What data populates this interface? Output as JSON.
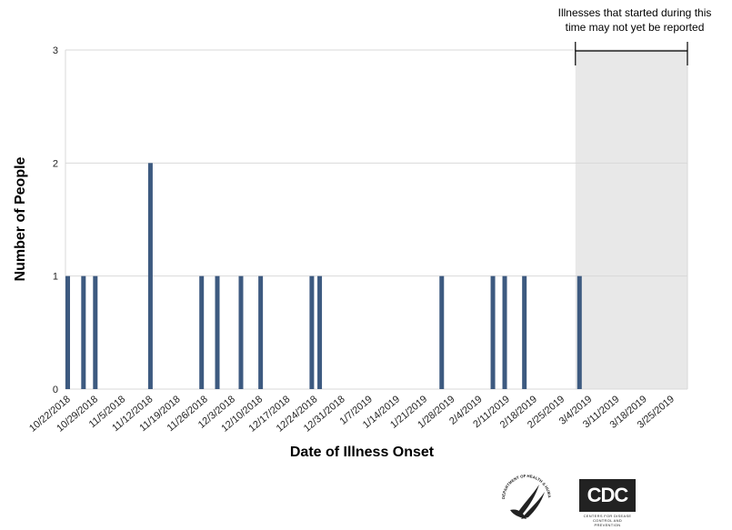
{
  "chart_data": {
    "type": "bar",
    "xlabel": "Date of Illness Onset",
    "ylabel": "Number of People",
    "ylim": [
      0,
      3
    ],
    "yticks": [
      0,
      1,
      2,
      3
    ],
    "grid": true,
    "x_ticks": [
      "10/22/2018",
      "10/29/2018",
      "11/5/2018",
      "11/12/2018",
      "11/19/2018",
      "11/26/2018",
      "12/3/2018",
      "12/10/2018",
      "12/17/2018",
      "12/24/2018",
      "12/31/2018",
      "1/7/2019",
      "1/14/2019",
      "1/21/2019",
      "1/28/2019",
      "2/4/2019",
      "2/11/2019",
      "2/18/2019",
      "2/25/2019",
      "3/4/2019",
      "3/11/2019",
      "3/18/2019",
      "3/25/2019"
    ],
    "x_start": "2018-10-22",
    "x_end": "2019-03-29",
    "bars": [
      {
        "date": "2018-10-22",
        "value": 1
      },
      {
        "date": "2018-10-26",
        "value": 1
      },
      {
        "date": "2018-10-29",
        "value": 1
      },
      {
        "date": "2018-11-12",
        "value": 2
      },
      {
        "date": "2018-11-25",
        "value": 1
      },
      {
        "date": "2018-11-29",
        "value": 1
      },
      {
        "date": "2018-12-05",
        "value": 1
      },
      {
        "date": "2018-12-10",
        "value": 1
      },
      {
        "date": "2018-12-23",
        "value": 1
      },
      {
        "date": "2018-12-25",
        "value": 1
      },
      {
        "date": "2019-01-25",
        "value": 1
      },
      {
        "date": "2019-02-07",
        "value": 1
      },
      {
        "date": "2019-02-10",
        "value": 1
      },
      {
        "date": "2019-02-15",
        "value": 1
      },
      {
        "date": "2019-03-01",
        "value": 1
      }
    ],
    "shaded_region": {
      "start": "2019-03-01",
      "end": "2019-03-29"
    },
    "annotation": [
      "Illnesses that started during this",
      "time may not yet be reported"
    ],
    "colors": {
      "bar": "#3d5a80",
      "shade": "#e8e8e8",
      "grid": "#d9d9d9"
    }
  },
  "logos": {
    "hhs_text": "DEPARTMENT OF HEALTH & HUMAN SERVICES USA",
    "cdc_text": "CDC",
    "cdc_subtext": [
      "CENTERS FOR DISEASE",
      "CONTROL AND PREVENTION"
    ]
  }
}
